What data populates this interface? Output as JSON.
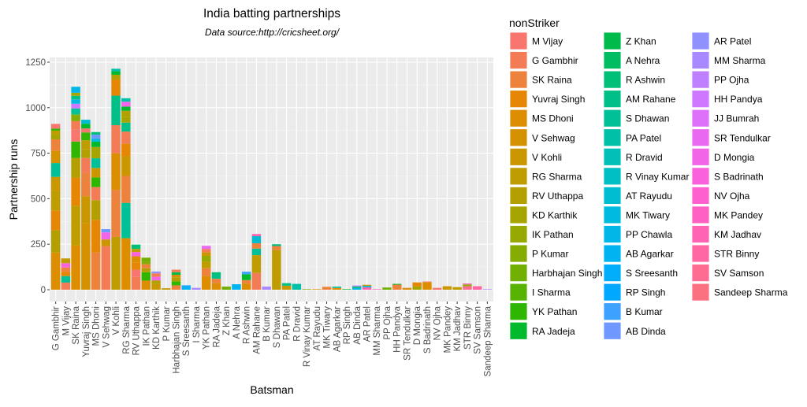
{
  "chart_data": {
    "type": "bar",
    "stacked": true,
    "title": "India  batting partnerships",
    "subtitle": "Data source:http://cricsheet.org/",
    "xlabel": "Batsman",
    "ylabel": "Partnership runs",
    "ylim": [
      0,
      1250
    ],
    "yticks": [
      0,
      250,
      500,
      750,
      1000,
      1250
    ],
    "grid": true,
    "legend_position": "right",
    "legend_title": "nonStriker",
    "palette": "ggplot-default-hue",
    "legend": [
      "M Vijay",
      "G Gambhir",
      "SK Raina",
      "Yuvraj Singh",
      "MS Dhoni",
      "V Sehwag",
      "V Kohli",
      "RG Sharma",
      "RV Uthappa",
      "KD Karthik",
      "IK Pathan",
      "P Kumar",
      "Harbhajan Singh",
      "I Sharma",
      "YK Pathan",
      "RA Jadeja",
      "Z Khan",
      "A Nehra",
      "R Ashwin",
      "AM Rahane",
      "S Dhawan",
      "PA Patel",
      "R Dravid",
      "R Vinay Kumar",
      "AT Rayudu",
      "MK Tiwary",
      "PP Chawla",
      "AB Agarkar",
      "S Sreesanth",
      "RP Singh",
      "B Kumar",
      "AB Dinda",
      "AR Patel",
      "MM Sharma",
      "PP Ojha",
      "HH Pandya",
      "JJ Bumrah",
      "SR Tendulkar",
      "D Mongia",
      "S Badrinath",
      "NV Ojha",
      "MK Pandey",
      "KM Jadhav",
      "STR Binny",
      "SV Samson",
      "Sandeep Sharma"
    ],
    "bars": [
      {
        "batsman": "G Gambhir",
        "segments": [
          [
            "MS Dhoni",
            204
          ],
          [
            "RV Uthappa",
            122
          ],
          [
            "Yuvraj Singh",
            110
          ],
          [
            "RG Sharma",
            105
          ],
          [
            "V Kohli",
            79
          ],
          [
            "S Dhawan",
            76
          ],
          [
            "V Sehwag",
            68
          ],
          [
            "SK Raina",
            62
          ],
          [
            "KD Karthik",
            24
          ],
          [
            "RG Sharma",
            24
          ],
          [
            "YK Pathan",
            11
          ],
          [
            "M Vijay",
            26
          ]
        ]
      },
      {
        "batsman": "M Vijay",
        "segments": [
          [
            "G Gambhir",
            39
          ],
          [
            "S Dhawan",
            36
          ],
          [
            "Yuvraj Singh",
            24
          ],
          [
            "SK Raina",
            23
          ],
          [
            "S Badrinath",
            24
          ],
          [
            "RG Sharma",
            26
          ]
        ]
      },
      {
        "batsman": "SK Raina",
        "segments": [
          [
            "MS Dhoni",
            244
          ],
          [
            "RG Sharma",
            218
          ],
          [
            "Yuvraj Singh",
            154
          ],
          [
            "RV Uthappa",
            108
          ],
          [
            "YK Pathan",
            90
          ],
          [
            "M Vijay",
            65
          ],
          [
            "G Gambhir",
            47
          ],
          [
            "P Kumar",
            37
          ],
          [
            "S Dhawan",
            33
          ],
          [
            "HH Pandya",
            26
          ],
          [
            "MK Tiwary",
            24
          ],
          [
            "AM Rahane",
            19
          ],
          [
            "KD Karthik",
            17
          ],
          [
            "PP Chawla",
            33
          ]
        ]
      },
      {
        "batsman": "Yuvraj Singh",
        "segments": [
          [
            "V Sehwag",
            365
          ],
          [
            "V Kohli",
            148
          ],
          [
            "SK Raina",
            129
          ],
          [
            "G Gambhir",
            82
          ],
          [
            "RV Uthappa",
            47
          ],
          [
            "RG Sharma",
            50
          ],
          [
            "YK Pathan",
            43
          ],
          [
            "M Vijay",
            22
          ],
          [
            "RA Jadeja",
            26
          ],
          [
            "AT Rayudu",
            22
          ]
        ]
      },
      {
        "batsman": "MS Dhoni",
        "segments": [
          [
            "SK Raina",
            204
          ],
          [
            "Yuvraj Singh",
            180
          ],
          [
            "RV Uthappa",
            108
          ],
          [
            "G Gambhir",
            72
          ],
          [
            "YK Pathan",
            53
          ],
          [
            "V Kohli",
            52
          ],
          [
            "S Dhawan",
            53
          ],
          [
            "KD Karthik",
            62
          ],
          [
            "RA Jadeja",
            29
          ],
          [
            "MK Tiwary",
            17
          ],
          [
            "AB Dinda",
            22
          ],
          [
            "R Ashwin",
            14
          ]
        ]
      },
      {
        "batsman": "V Sehwag",
        "segments": [
          [
            "G Gambhir",
            240
          ],
          [
            "V Kohli",
            36
          ],
          [
            "D Mongia",
            39
          ],
          [
            "AB Dinda",
            18
          ]
        ]
      },
      {
        "batsman": "V Kohli",
        "segments": [
          [
            "RG Sharma",
            290
          ],
          [
            "SK Raina",
            259
          ],
          [
            "MS Dhoni",
            201
          ],
          [
            "G Gambhir",
            154
          ],
          [
            "AM Rahane",
            162
          ],
          [
            "Yuvraj Singh",
            89
          ],
          [
            "RV Uthappa",
            26
          ],
          [
            "RA Jadeja",
            19
          ],
          [
            "PA Patel",
            14
          ]
        ]
      },
      {
        "batsman": "RG Sharma",
        "segments": [
          [
            "MS Dhoni",
            283
          ],
          [
            "S Dhawan",
            194
          ],
          [
            "SK Raina",
            148
          ],
          [
            "V Kohli",
            108
          ],
          [
            "Yuvraj Singh",
            70
          ],
          [
            "G Gambhir",
            66
          ],
          [
            "AM Rahane",
            49
          ],
          [
            "KD Karthik",
            33
          ],
          [
            "RV Uthappa",
            32
          ],
          [
            "RA Jadeja",
            23
          ],
          [
            "D Mongia",
            27
          ],
          [
            "PA Patel",
            19
          ]
        ]
      },
      {
        "batsman": "RV Uthappa",
        "segments": [
          [
            "G Gambhir",
            70
          ],
          [
            "M Vijay",
            40
          ],
          [
            "Yuvraj Singh",
            40
          ],
          [
            "MS Dhoni",
            34
          ],
          [
            "S Badrinath",
            23
          ],
          [
            "RG Sharma",
            17
          ],
          [
            "R Ashwin",
            24
          ]
        ]
      },
      {
        "batsman": "IK Pathan",
        "segments": [
          [
            "MS Dhoni",
            50
          ],
          [
            "YK Pathan",
            46
          ],
          [
            "RV Uthappa",
            22
          ],
          [
            "SK Raina",
            22
          ],
          [
            "P Kumar",
            14
          ],
          [
            "Harbhajan Singh",
            22
          ]
        ]
      },
      {
        "batsman": "KD Karthik",
        "segments": [
          [
            "V Kohli",
            32
          ],
          [
            "RV Uthappa",
            19
          ],
          [
            "D Mongia",
            20
          ],
          [
            "G Gambhir",
            19
          ],
          [
            "AR Patel",
            10
          ]
        ]
      },
      {
        "batsman": "P Kumar",
        "segments": [
          [
            "RG Sharma",
            8
          ]
        ]
      },
      {
        "batsman": "Harbhajan Singh",
        "segments": [
          [
            "SK Raina",
            24
          ],
          [
            "YK Pathan",
            22
          ],
          [
            "RV Uthappa",
            22
          ],
          [
            "MS Dhoni",
            14
          ],
          [
            "Z Khan",
            14
          ],
          [
            "G Gambhir",
            14
          ]
        ]
      },
      {
        "batsman": "S Sreesanth",
        "segments": [
          [
            "AB Agarkar",
            14
          ],
          [
            "RP Singh",
            10
          ]
        ]
      },
      {
        "batsman": "I Sharma",
        "segments": [
          [
            "MM Sharma",
            10
          ]
        ]
      },
      {
        "batsman": "YK Pathan",
        "segments": [
          [
            "MS Dhoni",
            75
          ],
          [
            "SK Raina",
            43
          ],
          [
            "RG Sharma",
            36
          ],
          [
            "IK Pathan",
            32
          ],
          [
            "V Kohli",
            19
          ],
          [
            "G Gambhir",
            19
          ],
          [
            "SR Tendulkar",
            17
          ]
        ]
      },
      {
        "batsman": "RA Jadeja",
        "segments": [
          [
            "MS Dhoni",
            36
          ],
          [
            "SK Raina",
            24
          ],
          [
            "AM Rahane",
            22
          ],
          [
            "R Ashwin",
            14
          ]
        ]
      },
      {
        "batsman": "Z Khan",
        "segments": [
          [
            "Harbhajan Singh",
            17
          ]
        ]
      },
      {
        "batsman": "A Nehra",
        "segments": [
          [
            "AB Agarkar",
            30
          ]
        ]
      },
      {
        "batsman": "R Ashwin",
        "segments": [
          [
            "MS Dhoni",
            34
          ],
          [
            "SK Raina",
            19
          ],
          [
            "RA Jadeja",
            32
          ],
          [
            "B Kumar",
            14
          ]
        ]
      },
      {
        "batsman": "AM Rahane",
        "segments": [
          [
            "G Gambhir",
            92
          ],
          [
            "RG Sharma",
            98
          ],
          [
            "S Dhawan",
            36
          ],
          [
            "SK Raina",
            29
          ],
          [
            "AT Rayudu",
            39
          ],
          [
            "KM Jadhav",
            12
          ]
        ]
      },
      {
        "batsman": "B Kumar",
        "segments": [
          [
            "MM Sharma",
            17
          ]
        ]
      },
      {
        "batsman": "S Dhawan",
        "segments": [
          [
            "RG Sharma",
            218
          ],
          [
            "SK Raina",
            22
          ],
          [
            "AM Rahane",
            10
          ]
        ]
      },
      {
        "batsman": "PA Patel",
        "segments": [
          [
            "V Kohli",
            22
          ],
          [
            "AM Rahane",
            14
          ]
        ]
      },
      {
        "batsman": "R Dravid",
        "segments": [
          [
            "PA Patel",
            32
          ]
        ]
      },
      {
        "batsman": "R Vinay Kumar",
        "segments": [
          [
            "P Kumar",
            3
          ]
        ]
      },
      {
        "batsman": "AT Rayudu",
        "segments": [
          [
            "MS Dhoni",
            3
          ]
        ]
      },
      {
        "batsman": "MK Tiwary",
        "segments": [
          [
            "SK Raina",
            16
          ]
        ]
      },
      {
        "batsman": "AB Agarkar",
        "segments": [
          [
            "MS Dhoni",
            10
          ],
          [
            "PA Patel",
            7
          ]
        ]
      },
      {
        "batsman": "RP Singh",
        "segments": [
          [
            "RA Jadeja",
            3
          ]
        ]
      },
      {
        "batsman": "AB Dinda",
        "segments": [
          [
            "PP Chawla",
            9
          ],
          [
            "R Ashwin",
            8
          ],
          [
            "MM Sharma",
            6
          ]
        ]
      },
      {
        "batsman": "AR Patel",
        "segments": [
          [
            "KM Jadhav",
            13
          ],
          [
            "MK Tiwary",
            8
          ],
          [
            "V Kohli",
            6
          ]
        ]
      },
      {
        "batsman": "MM Sharma",
        "segments": [
          [
            "STR Binny",
            3
          ]
        ]
      },
      {
        "batsman": "PP Ojha",
        "segments": [
          [
            "Harbhajan Singh",
            12
          ]
        ]
      },
      {
        "batsman": "HH Pandya",
        "segments": [
          [
            "SK Raina",
            28
          ],
          [
            "RA Jadeja",
            4
          ]
        ]
      },
      {
        "batsman": "SR Tendulkar",
        "segments": [
          [
            "MS Dhoni",
            10
          ]
        ]
      },
      {
        "batsman": "D Mongia",
        "segments": [
          [
            "KD Karthik",
            18
          ],
          [
            "Yuvraj Singh",
            22
          ]
        ]
      },
      {
        "batsman": "S Badrinath",
        "segments": [
          [
            "MS Dhoni",
            42
          ],
          [
            "M Vijay",
            3
          ]
        ]
      },
      {
        "batsman": "NV Ojha",
        "segments": [
          [
            "M Vijay",
            10
          ]
        ]
      },
      {
        "batsman": "MK Pandey",
        "segments": [
          [
            "V Kohli",
            19
          ]
        ]
      },
      {
        "batsman": "KM Jadhav",
        "segments": [
          [
            "RG Sharma",
            14
          ]
        ]
      },
      {
        "batsman": "STR Binny",
        "segments": [
          [
            "SV Samson",
            19
          ],
          [
            "IK Pathan",
            10
          ],
          [
            "MK Pandey",
            5
          ]
        ]
      },
      {
        "batsman": "SV Samson",
        "segments": [
          [
            "STR Binny",
            19
          ]
        ]
      },
      {
        "batsman": "Sandeep Sharma",
        "segments": [
          [
            "PP Ojha",
            3
          ]
        ]
      }
    ]
  }
}
